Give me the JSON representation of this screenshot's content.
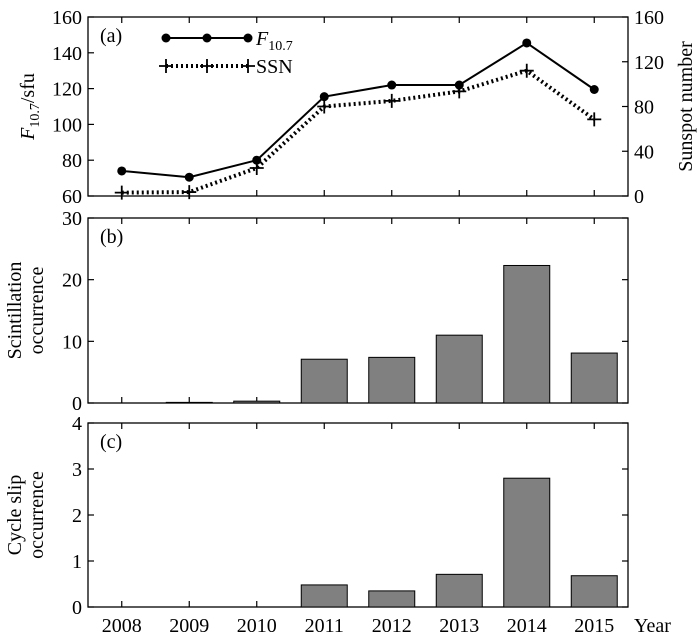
{
  "chart_data": [
    {
      "type": "line",
      "panel_label": "(a)",
      "x": [
        "2008",
        "2009",
        "2010",
        "2011",
        "2012",
        "2013",
        "2014",
        "2015"
      ],
      "ylabel_left": {
        "main": "F",
        "sub": "10.7",
        "suffix": "/sfu"
      },
      "ylabel_right": "Sunspot number",
      "ylim_left": [
        60,
        160
      ],
      "yticks_left": [
        60,
        80,
        100,
        120,
        140,
        160
      ],
      "ylim_right": [
        0,
        160
      ],
      "yticks_right": [
        0,
        40,
        80,
        120,
        160
      ],
      "series": [
        {
          "name": "F10.7",
          "legend": {
            "main": "F",
            "sub": "10.7"
          },
          "axis": "left",
          "style": "solid-circle",
          "values": [
            74,
            70.5,
            80,
            115.5,
            122,
            122,
            145.5,
            119.5
          ]
        },
        {
          "name": "SSN",
          "legend": {
            "main": "SSN",
            "sub": ""
          },
          "axis": "right",
          "style": "dotted-plus",
          "values": [
            3,
            3.5,
            25,
            80,
            85,
            93.5,
            112,
            68.5
          ]
        }
      ]
    },
    {
      "type": "bar",
      "panel_label": "(b)",
      "categories": [
        "2008",
        "2009",
        "2010",
        "2011",
        "2012",
        "2013",
        "2014",
        "2015"
      ],
      "values": [
        0,
        0.1,
        0.3,
        7.1,
        7.4,
        11.0,
        22.3,
        8.1
      ],
      "ylabel": [
        "Scintillation",
        "occurrence"
      ],
      "ylim": [
        0,
        30
      ],
      "yticks": [
        0,
        10,
        20,
        30
      ]
    },
    {
      "type": "bar",
      "panel_label": "(c)",
      "categories": [
        "2008",
        "2009",
        "2010",
        "2011",
        "2012",
        "2013",
        "2014",
        "2015"
      ],
      "values": [
        0,
        0,
        0,
        0.48,
        0.35,
        0.71,
        2.8,
        0.68
      ],
      "ylabel": [
        "Cycle slip",
        "occurrence"
      ],
      "ylim": [
        0,
        4
      ],
      "yticks": [
        0,
        1,
        2,
        3,
        4
      ],
      "xlabel": "Year"
    }
  ],
  "colors": {
    "bar_fill": "#808080",
    "axis": "#000000",
    "line": "#000000"
  }
}
